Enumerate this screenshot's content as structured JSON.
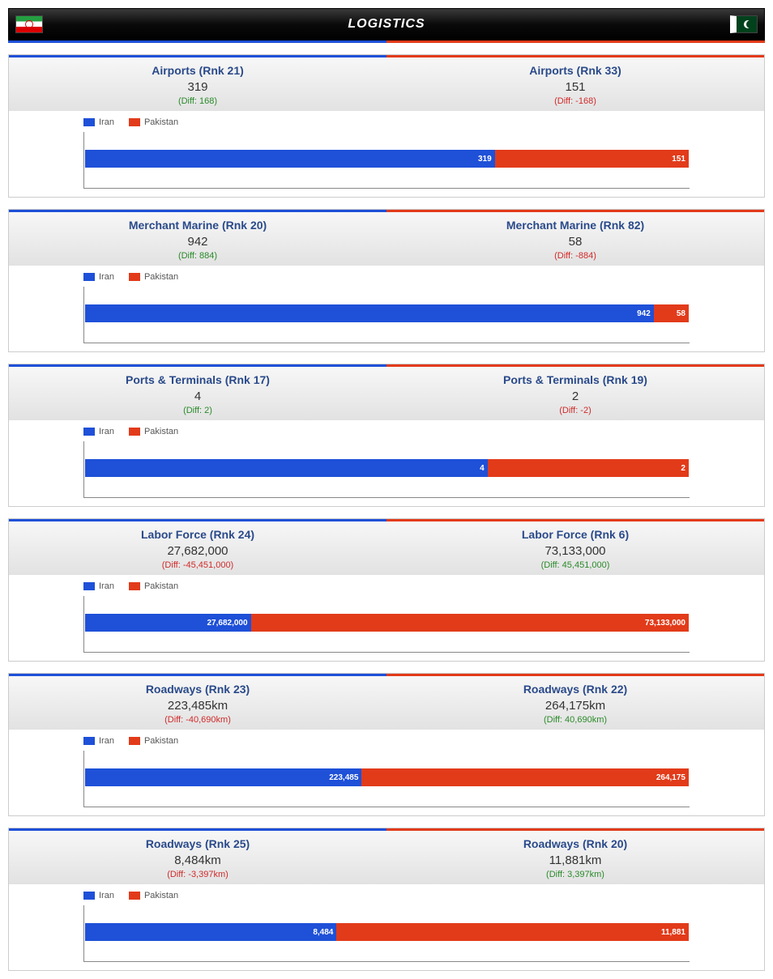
{
  "page": {
    "title": "LOGISTICS",
    "country_left": "Iran",
    "country_right": "Pakistan",
    "colors": {
      "left": "#1e50d8",
      "right": "#e23b1a",
      "diff_pos": "#2a8a2a",
      "diff_neg": "#d02a2a"
    }
  },
  "legend": {
    "left_label": "Iran",
    "right_label": "Pakistan"
  },
  "metrics": [
    {
      "left": {
        "title": "Airports (Rnk 21)",
        "value": "319",
        "diff": "(Diff: 168)",
        "diff_sign": "pos"
      },
      "right": {
        "title": "Airports (Rnk 33)",
        "value": "151",
        "diff": "(Diff: -168)",
        "diff_sign": "neg"
      },
      "chart": {
        "left_val": 319,
        "right_val": 151,
        "left_label": "319",
        "right_label": "151",
        "max": 470
      }
    },
    {
      "left": {
        "title": "Merchant Marine (Rnk 20)",
        "value": "942",
        "diff": "(Diff: 884)",
        "diff_sign": "pos"
      },
      "right": {
        "title": "Merchant Marine (Rnk 82)",
        "value": "58",
        "diff": "(Diff: -884)",
        "diff_sign": "neg"
      },
      "chart": {
        "left_val": 942,
        "right_val": 58,
        "left_label": "942",
        "right_label": "58",
        "max": 1000
      }
    },
    {
      "left": {
        "title": "Ports & Terminals (Rnk 17)",
        "value": "4",
        "diff": "(Diff: 2)",
        "diff_sign": "pos"
      },
      "right": {
        "title": "Ports & Terminals (Rnk 19)",
        "value": "2",
        "diff": "(Diff: -2)",
        "diff_sign": "neg"
      },
      "chart": {
        "left_val": 4,
        "right_val": 2,
        "left_label": "4",
        "right_label": "2",
        "max": 6
      }
    },
    {
      "left": {
        "title": "Labor Force (Rnk 24)",
        "value": "27,682,000",
        "diff": "(Diff: -45,451,000)",
        "diff_sign": "neg"
      },
      "right": {
        "title": "Labor Force (Rnk 6)",
        "value": "73,133,000",
        "diff": "(Diff: 45,451,000)",
        "diff_sign": "pos"
      },
      "chart": {
        "left_val": 27682000,
        "right_val": 73133000,
        "left_label": "27,682,000",
        "right_label": "73,133,000",
        "max": 100815000
      }
    },
    {
      "left": {
        "title": "Roadways (Rnk 23)",
        "value": "223,485km",
        "diff": "(Diff: -40,690km)",
        "diff_sign": "neg"
      },
      "right": {
        "title": "Roadways (Rnk 22)",
        "value": "264,175km",
        "diff": "(Diff: 40,690km)",
        "diff_sign": "pos"
      },
      "chart": {
        "left_val": 223485,
        "right_val": 264175,
        "left_label": "223,485",
        "right_label": "264,175",
        "max": 487660
      }
    },
    {
      "left": {
        "title": "Roadways (Rnk 25)",
        "value": "8,484km",
        "diff": "(Diff: -3,397km)",
        "diff_sign": "neg"
      },
      "right": {
        "title": "Roadways (Rnk 20)",
        "value": "11,881km",
        "diff": "(Diff: 3,397km)",
        "diff_sign": "pos"
      },
      "chart": {
        "left_val": 8484,
        "right_val": 11881,
        "left_label": "8,484",
        "right_label": "11,881",
        "max": 20365
      }
    }
  ]
}
